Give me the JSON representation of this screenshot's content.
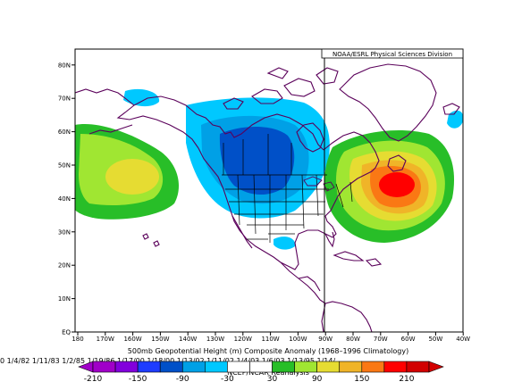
{
  "credit": "NOAA/ESRL Physical Sciences Division",
  "caption_title": "500mb Geopotential Height (m) Composite Anomaly (1968–1996 Climatology)",
  "caption_dates": "0 1/4/82 1/11/83 1/2/85 1/19/86 1/17/00 1/18/00 1/13/02 1/11/02 1/4/03 1/6/03 1/13/95 1/14/",
  "caption_source": "NCEP/NCAR Reanalysis",
  "lat_ticks": [
    "EQ",
    "10N",
    "20N",
    "30N",
    "40N",
    "50N",
    "60N",
    "70N",
    "80N"
  ],
  "lon_ticks": [
    "180",
    "170W",
    "160W",
    "150W",
    "140W",
    "130W",
    "120W",
    "110W",
    "100W",
    "90W",
    "80W",
    "70W",
    "60W",
    "50W",
    "40W"
  ],
  "legend": {
    "labels": [
      "-210",
      "-150",
      "-90",
      "-30",
      "30",
      "90",
      "150",
      "210"
    ],
    "colors": [
      "#a000c8",
      "#8200dc",
      "#1e3cff",
      "#0050c8",
      "#00a0e6",
      "#00c8ff",
      "#ffffff",
      "#ffffff",
      "#28be28",
      "#a0e632",
      "#e6dc32",
      "#f0b428",
      "#fa7814",
      "#ff0000",
      "#d20000"
    ]
  },
  "colors": {
    "positive_core": "#ff0000",
    "negative_core": "#0050c8",
    "land_outline": "#5a005a"
  }
}
